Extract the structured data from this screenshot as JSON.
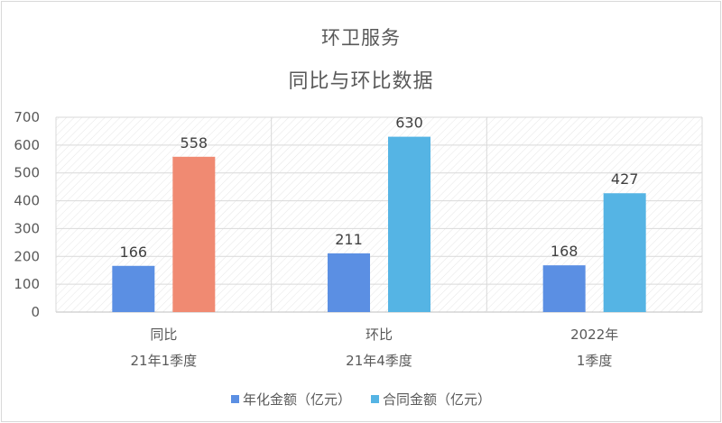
{
  "chart_data": {
    "type": "bar",
    "title_lines": [
      "环卫服务",
      "同比与环比数据"
    ],
    "categories": [
      {
        "line1": "同比",
        "line2": "21年1季度"
      },
      {
        "line1": "环比",
        "line2": "21年4季度"
      },
      {
        "line1": "2022年",
        "line2": "1季度"
      }
    ],
    "series": [
      {
        "name": "年化金额（亿元）",
        "values": [
          166,
          211,
          168
        ],
        "color": "#5b8fe3"
      },
      {
        "name": "合同金额（亿元）",
        "values": [
          558,
          630,
          427
        ],
        "color": "#55b4e4",
        "point_colors": [
          "#f08a72",
          "#55b4e4",
          "#55b4e4"
        ]
      }
    ],
    "ylim": [
      0,
      700
    ],
    "yticks": [
      0,
      100,
      200,
      300,
      400,
      500,
      600,
      700
    ],
    "grid": true,
    "legend": "bottom"
  }
}
